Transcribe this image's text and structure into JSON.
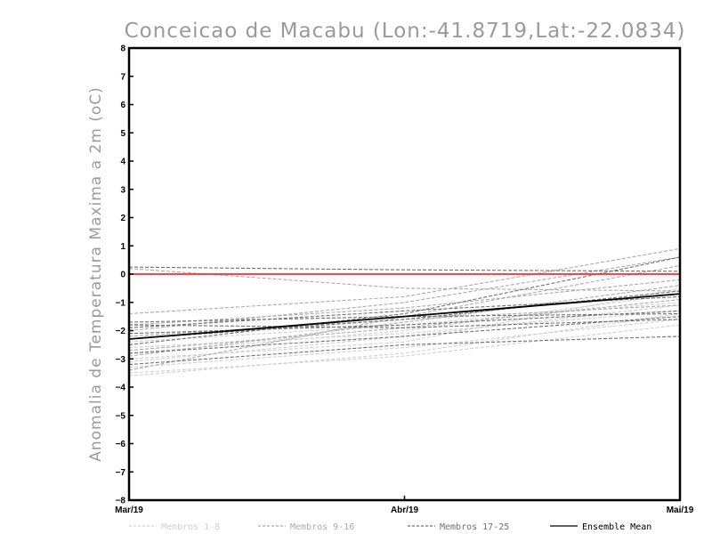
{
  "chart_data": {
    "type": "line",
    "title": "Conceicao de Macabu (Lon:-41.8719,Lat:-22.0834)",
    "ylabel": "Anomalia de Temperatura Maxima a 2m (oC)",
    "xlabel": "",
    "categories": [
      "Mar/19",
      "Abr/19",
      "Mai/19"
    ],
    "y_ticks": [
      "8",
      "7",
      "6",
      "5",
      "4",
      "3",
      "2",
      "1",
      "0",
      "−1",
      "−2",
      "−3",
      "−4",
      "−5",
      "−6",
      "−7",
      "−8"
    ],
    "ylim": [
      -8,
      8
    ],
    "grid": false,
    "legend_position": "bottom",
    "legend": [
      {
        "label": "Membros 1-8",
        "color": "#d0d0d0",
        "dashed": true
      },
      {
        "label": "Membros 9-16",
        "color": "#ababab",
        "dashed": true
      },
      {
        "label": "Membros 17-25",
        "color": "#707070",
        "dashed": true
      },
      {
        "label": "Ensemble Mean",
        "color": "#000000",
        "dashed": false
      }
    ],
    "series": [
      {
        "group": "Membros 1-8",
        "color": "#d0d0d0",
        "values": [
          -3.6,
          -2.8,
          -1.4
        ]
      },
      {
        "group": "Membros 1-8",
        "color": "#d0d0d0",
        "values": [
          -3.5,
          -2.9,
          -1.8
        ]
      },
      {
        "group": "Membros 1-8",
        "color": "#d0d0d0",
        "values": [
          -3.1,
          -2.2,
          -1.1
        ]
      },
      {
        "group": "Membros 1-8",
        "color": "#d0d0d0",
        "values": [
          -2.8,
          -2.0,
          -0.7
        ]
      },
      {
        "group": "Membros 1-8",
        "color": "#d0d0d0",
        "values": [
          -3.3,
          -2.6,
          -1.6
        ]
      },
      {
        "group": "Membros 1-8",
        "color": "#d0d0d0",
        "values": [
          -2.4,
          -1.8,
          -1.0
        ]
      },
      {
        "group": "Membros 1-8",
        "color": "#d0d0d0",
        "values": [
          -3.0,
          -2.4,
          -0.5
        ]
      },
      {
        "group": "Membros 1-8",
        "color": "#d0d0d0",
        "values": [
          -2.6,
          -2.1,
          -1.3
        ]
      },
      {
        "group": "Membros 9-16",
        "color": "#ababab",
        "values": [
          -1.4,
          -0.8,
          0.9
        ]
      },
      {
        "group": "Membros 9-16",
        "color": "#ababab",
        "values": [
          -2.0,
          -1.0,
          0.6
        ]
      },
      {
        "group": "Membros 9-16",
        "color": "#ababab",
        "values": [
          -3.4,
          -1.5,
          0.3
        ]
      },
      {
        "group": "Membros 9-16",
        "color": "#ababab",
        "values": [
          -2.9,
          -1.7,
          -0.4
        ]
      },
      {
        "group": "Membros 9-16",
        "color": "#ababab",
        "values": [
          0.2,
          -0.5,
          -0.6
        ]
      },
      {
        "group": "Membros 9-16",
        "color": "#ababab",
        "values": [
          -1.8,
          -1.2,
          -0.2
        ]
      },
      {
        "group": "Membros 9-16",
        "color": "#ababab",
        "values": [
          -2.7,
          -1.9,
          -0.9
        ]
      },
      {
        "group": "Membros 9-16",
        "color": "#ababab",
        "values": [
          -2.2,
          -1.6,
          -1.1
        ]
      },
      {
        "group": "Membros 17-25",
        "color": "#707070",
        "values": [
          0.25,
          0.15,
          0.1
        ]
      },
      {
        "group": "Membros 17-25",
        "color": "#707070",
        "values": [
          -1.7,
          -1.5,
          -1.4
        ]
      },
      {
        "group": "Membros 17-25",
        "color": "#707070",
        "values": [
          -1.9,
          -1.3,
          -0.8
        ]
      },
      {
        "group": "Membros 17-25",
        "color": "#707070",
        "values": [
          -2.5,
          -1.4,
          0.6
        ]
      },
      {
        "group": "Membros 17-25",
        "color": "#707070",
        "values": [
          -2.1,
          -1.8,
          -1.3
        ]
      },
      {
        "group": "Membros 17-25",
        "color": "#707070",
        "values": [
          -3.2,
          -2.5,
          -2.2
        ]
      },
      {
        "group": "Membros 17-25",
        "color": "#707070",
        "values": [
          -2.3,
          -1.6,
          -0.6
        ]
      },
      {
        "group": "Membros 17-25",
        "color": "#707070",
        "values": [
          -1.8,
          -1.9,
          -1.6
        ]
      },
      {
        "group": "Membros 17-25",
        "color": "#707070",
        "values": [
          -2.8,
          -2.2,
          -1.5
        ]
      },
      {
        "group": "Ensemble Mean",
        "color": "#000000",
        "values": [
          -2.3,
          -1.5,
          -0.7
        ]
      },
      {
        "group": "reference",
        "color": "#ff2a2a",
        "values": [
          0,
          0,
          0
        ]
      }
    ]
  }
}
